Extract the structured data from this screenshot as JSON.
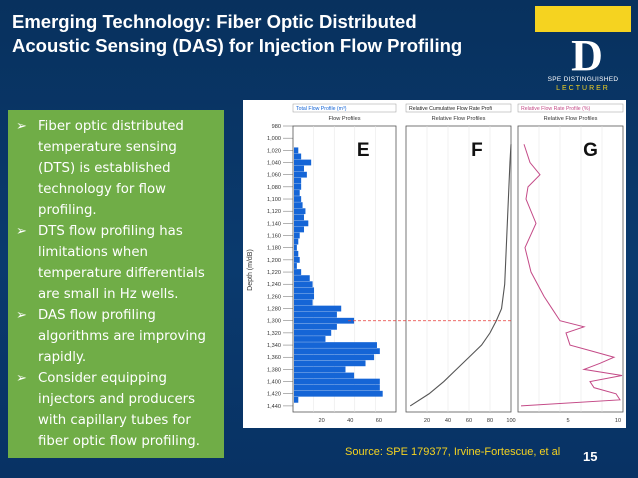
{
  "slide": {
    "title_line1": "Emerging Technology: Fiber Optic Distributed",
    "title_line2": "Acoustic Sensing (DAS) for Injection Flow Profiling",
    "page_number": "15",
    "source": "Source: SPE 179377,  Irvine-Fortescue, et al"
  },
  "logo": {
    "letter": "D",
    "line1": "SPE DISTINGUISHED",
    "line2": "LECTURER"
  },
  "bullets": [
    "Fiber optic distributed temperature sensing (DTS) is established technology for flow profiling.",
    "DTS flow profiling has limitations when temperature differentials are small in Hz wells.",
    "DAS flow profiling algorithms are improving rapidly.",
    "Consider equipping injectors and producers with capillary tubes for fiber optic flow profiling."
  ],
  "figure": {
    "panels": [
      {
        "letter": "E",
        "header1": "Total Flow Profile (m³)",
        "header2": "Flow Profiles"
      },
      {
        "letter": "F",
        "header1": "Relative Cumulative Flow Rate Profi",
        "header2": "Relative Flow Profiles"
      },
      {
        "letter": "G",
        "header1": "Relative Flow Rate Profile (%)",
        "header2": "Relative Flow Profiles"
      }
    ],
    "depth_label": "Depth (m/dB)",
    "depth_ticks": [
      "980",
      "1,000",
      "1,020",
      "1,040",
      "1,060",
      "1,080",
      "1,100",
      "1,120",
      "1,140",
      "1,160",
      "1,180",
      "1,200",
      "1,220",
      "1,240",
      "1,260",
      "1,280",
      "1,300",
      "1,320",
      "1,340",
      "1,360",
      "1,380",
      "1,400",
      "1,420",
      "1,440"
    ],
    "e_ticks": [
      "20",
      "40",
      "60"
    ],
    "f_ticks": [
      "20",
      "40",
      "60",
      "80",
      "100"
    ],
    "g_ticks": [
      "5",
      "10"
    ],
    "colors": {
      "bar": "#1565d6",
      "line": "#555555",
      "g_line": "#c44a87",
      "marker": "#e53935"
    }
  },
  "chart_data": {
    "type": "bar",
    "title": "",
    "ylabel": "Depth (m/dB)",
    "ylim": [
      980,
      1450
    ],
    "panel_e_total_flow": {
      "depths": [
        1020,
        1030,
        1040,
        1050,
        1060,
        1070,
        1080,
        1090,
        1100,
        1110,
        1120,
        1130,
        1140,
        1150,
        1160,
        1170,
        1180,
        1190,
        1200,
        1210,
        1220,
        1230,
        1240,
        1250,
        1260,
        1270,
        1280,
        1290,
        1300,
        1310,
        1320,
        1330,
        1340,
        1350,
        1360,
        1370,
        1380,
        1390,
        1400,
        1410,
        1420,
        1430
      ],
      "values": [
        3,
        5,
        12,
        7,
        9,
        5,
        5,
        4,
        5,
        6,
        8,
        7,
        10,
        7,
        4,
        3,
        2,
        3,
        4,
        2,
        5,
        11,
        13,
        14,
        14,
        13,
        33,
        30,
        42,
        30,
        26,
        22,
        58,
        60,
        56,
        50,
        36,
        42,
        60,
        60,
        62,
        3
      ]
    },
    "panel_f_cumulative_percent": {
      "depths": [
        1010,
        1040,
        1080,
        1120,
        1160,
        1200,
        1240,
        1280,
        1300,
        1320,
        1340,
        1360,
        1380,
        1400,
        1420,
        1440
      ],
      "values": [
        100,
        99,
        98,
        97,
        96,
        95,
        94,
        91,
        86,
        80,
        72,
        60,
        48,
        36,
        22,
        4
      ]
    },
    "panel_g_relative_percent": {
      "depths": [
        1010,
        1040,
        1060,
        1080,
        1100,
        1140,
        1180,
        1220,
        1260,
        1280,
        1300,
        1310,
        1320,
        1340,
        1350,
        1360,
        1370,
        1380,
        1390,
        1400,
        1410,
        1420,
        1430,
        1440
      ],
      "values": [
        0.6,
        1.2,
        2.2,
        1.0,
        0.8,
        1.8,
        0.7,
        1.3,
        2.6,
        3.4,
        4.2,
        6.6,
        4.8,
        5.2,
        7.4,
        9.6,
        8.2,
        6.6,
        10.4,
        7.2,
        7.6,
        9.8,
        10.2,
        0.3
      ]
    },
    "marker_depth": 1300
  }
}
